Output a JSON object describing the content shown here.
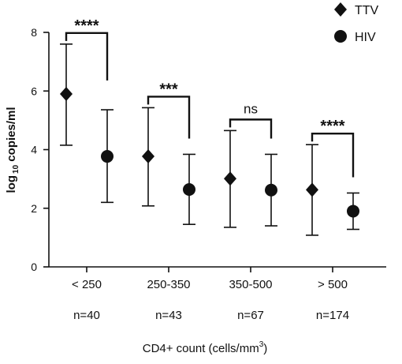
{
  "chart_data": {
    "type": "scatter",
    "title": "",
    "ylabel_prefix": "log",
    "ylabel_sub": "10",
    "ylabel_suffix": " copies/ml",
    "xlabel_main": "CD4+ count (cells/mm",
    "xlabel_sup": "3",
    "xlabel_tail": ")",
    "ylim": [
      0,
      8
    ],
    "yticks": [
      0,
      2,
      4,
      6,
      8
    ],
    "categories": [
      "< 250",
      "250-350",
      "350-500",
      "> 500"
    ],
    "n_labels": [
      "n=40",
      "n=43",
      "n=67",
      "n=174"
    ],
    "legend_position": "top-right",
    "series": [
      {
        "name": "TTV",
        "marker": "diamond",
        "values": [
          5.9,
          3.77,
          3.01,
          2.63
        ],
        "lower": [
          4.15,
          2.08,
          1.35,
          1.08
        ],
        "upper": [
          7.6,
          5.43,
          4.65,
          4.17
        ]
      },
      {
        "name": "HIV",
        "marker": "circle",
        "values": [
          3.77,
          2.64,
          2.62,
          1.9
        ],
        "lower": [
          2.2,
          1.45,
          1.4,
          1.28
        ],
        "upper": [
          5.36,
          3.84,
          3.84,
          2.52
        ]
      }
    ],
    "significance": [
      "****",
      "***",
      "ns",
      "****"
    ],
    "colors": {
      "marker": "#111111",
      "axis": "#111111"
    }
  }
}
